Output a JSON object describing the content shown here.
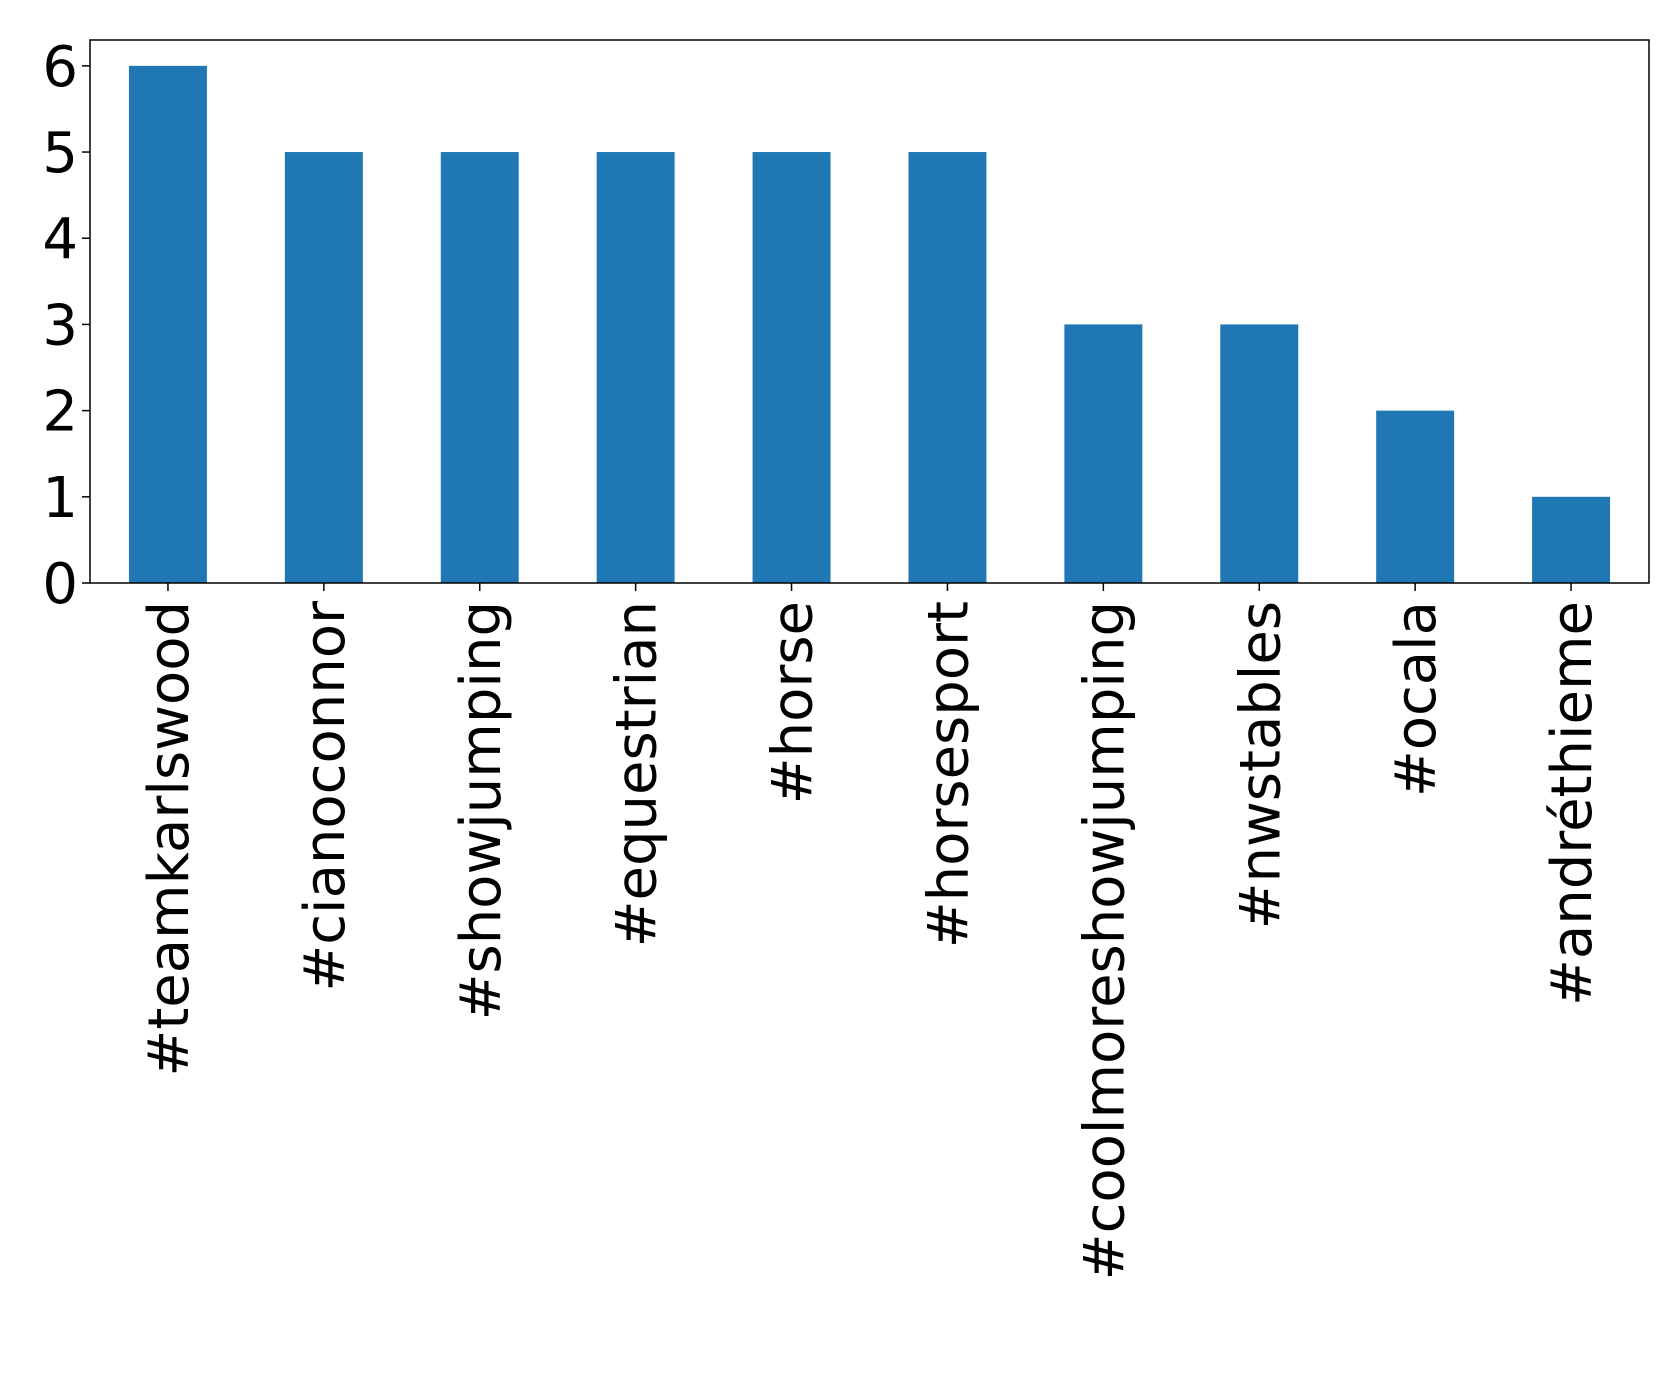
{
  "chart_data": {
    "type": "bar",
    "title": "",
    "xlabel": "",
    "ylabel": "",
    "categories": [
      "#teamkarlswood",
      "#cianoconnor",
      "#showjumping",
      "#equestrian",
      "#horse",
      "#horsesport",
      "#coolmoreshowjumping",
      "#nwstables",
      "#ocala",
      "#andréthieme"
    ],
    "values": [
      6,
      5,
      5,
      5,
      5,
      5,
      3,
      3,
      2,
      1
    ],
    "ylim": [
      0,
      6.3
    ],
    "yticks": [
      0,
      1,
      2,
      3,
      4,
      5,
      6
    ],
    "grid": false,
    "legend": "none",
    "bar_color": "#1f77b4"
  }
}
